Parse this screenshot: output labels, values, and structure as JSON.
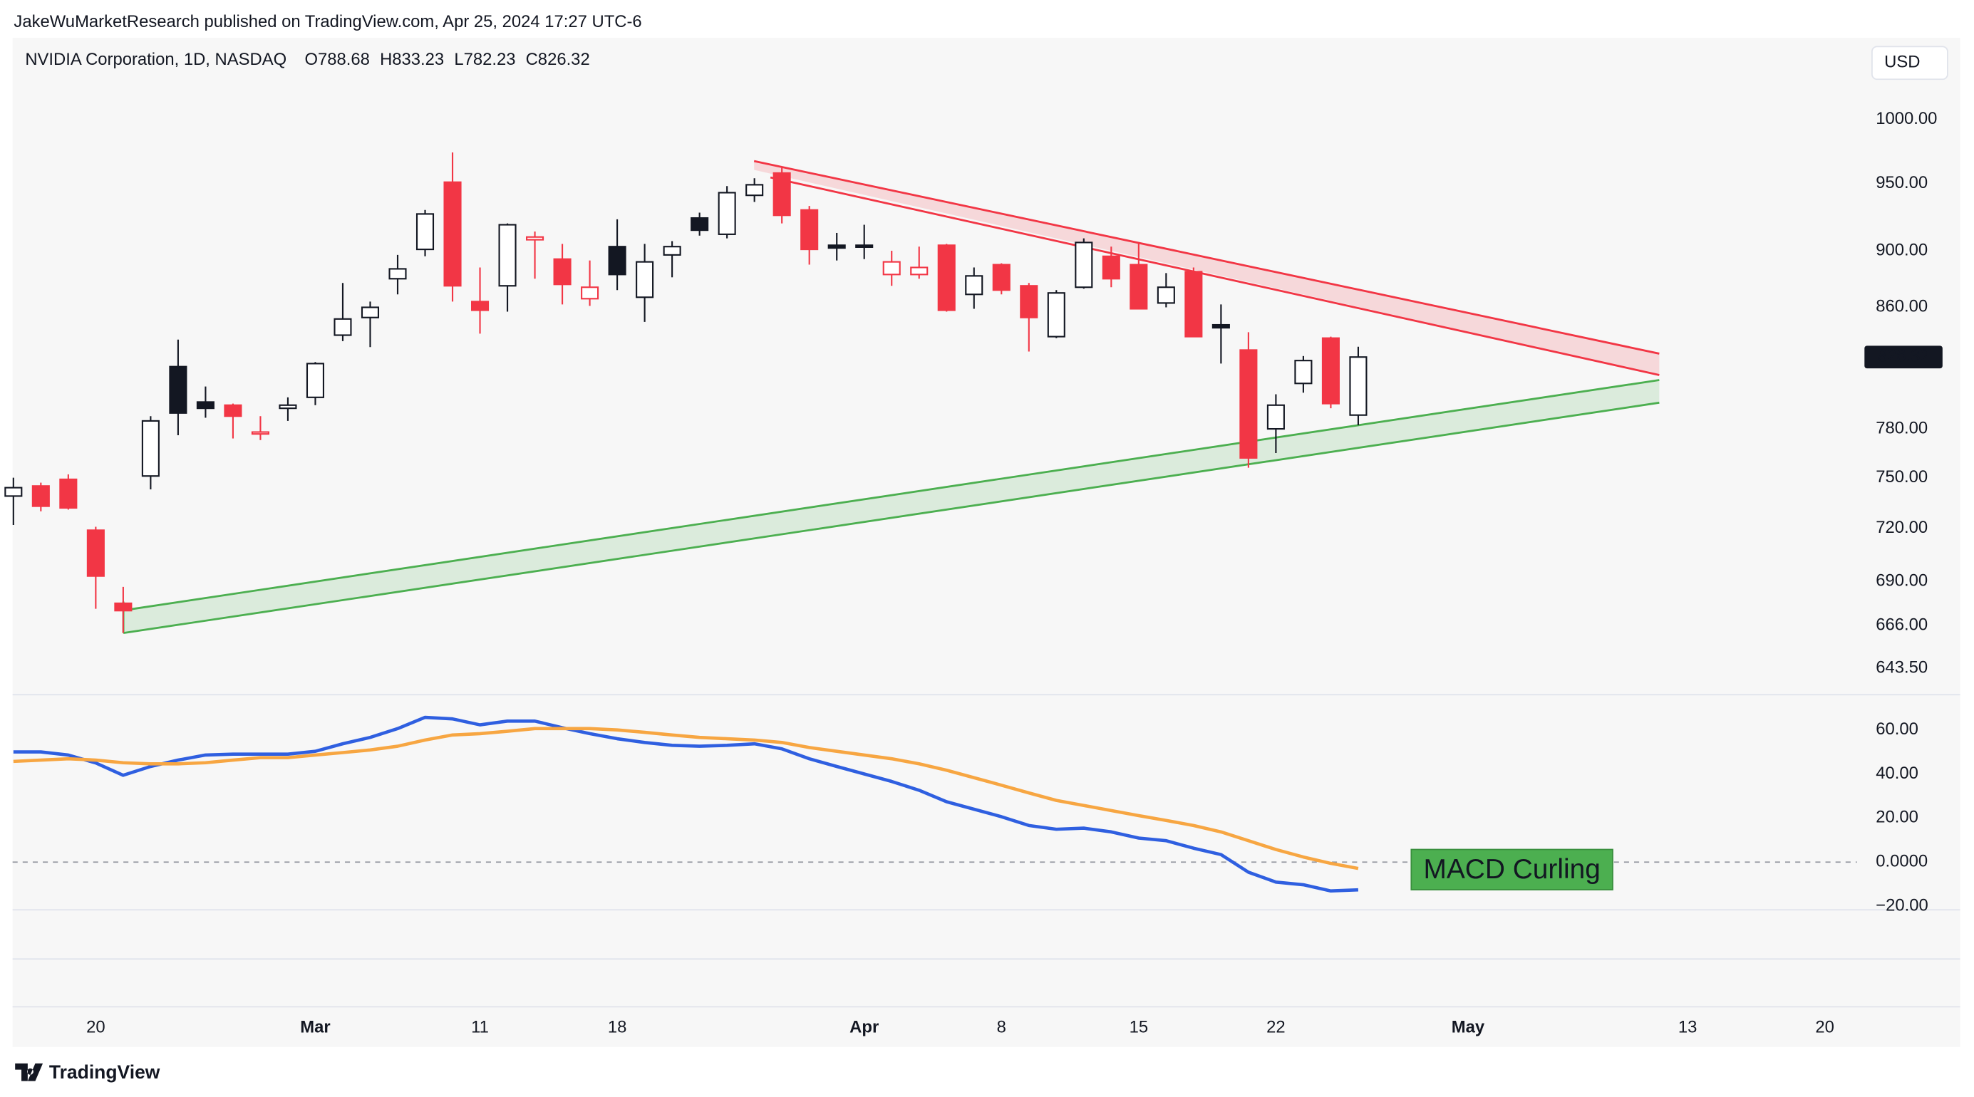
{
  "chart_data": {
    "type": "candlestick",
    "published": "JakeWuMarketResearch published on TradingView.com, Apr 25, 2024 17:27 UTC-6",
    "title": "NVIDIA Corporation, 1D, NASDAQ",
    "ohlc_labels": [
      "O",
      "H",
      "L",
      "C"
    ],
    "currency": "USD",
    "brand": "TradingView",
    "annotation": "MACD Curling",
    "x": [
      -3,
      -2,
      -1,
      0,
      1,
      2,
      3,
      4,
      5,
      6,
      7,
      8,
      9,
      10,
      11,
      12,
      13,
      14,
      15,
      16,
      17,
      18,
      19,
      20,
      21,
      22,
      23,
      24,
      25,
      26,
      27,
      28,
      29,
      30,
      31,
      32,
      33,
      34,
      35,
      36,
      37,
      38,
      39,
      40,
      41,
      42,
      43,
      44,
      45,
      46
    ],
    "open": [
      739,
      745,
      749,
      719,
      678,
      751,
      820,
      797,
      795,
      777,
      793,
      800,
      841,
      853,
      880,
      901,
      951,
      864,
      875,
      908,
      894,
      866,
      903,
      867,
      897,
      924,
      912,
      941,
      958,
      930,
      904,
      904,
      883,
      883,
      904,
      869,
      890,
      875,
      840,
      874,
      896,
      890,
      863,
      885,
      848,
      831,
      780,
      809,
      839,
      788.68
    ],
    "high": [
      750,
      747,
      752,
      721,
      687,
      788,
      838,
      807,
      796,
      788,
      800,
      823,
      877,
      864,
      897,
      930,
      974,
      888,
      920,
      914,
      905,
      893,
      923,
      905,
      907,
      928,
      948,
      954,
      962,
      933,
      913,
      919,
      900,
      903,
      905,
      888,
      891,
      877,
      872,
      909,
      903,
      906,
      884,
      888,
      862,
      843,
      802,
      827,
      840,
      833.23
    ],
    "low": [
      722,
      730,
      731,
      675,
      662,
      743,
      776,
      787,
      774,
      773,
      785,
      795,
      837,
      833,
      869,
      896,
      864,
      842,
      857,
      880,
      862,
      861,
      872,
      850,
      881,
      911,
      909,
      936,
      920,
      890,
      893,
      894,
      875,
      880,
      857,
      859,
      869,
      830,
      839,
      873,
      874,
      859,
      860,
      840,
      822,
      756,
      765,
      803,
      793,
      782.23
    ],
    "close": [
      744,
      733,
      732,
      693,
      674,
      785,
      790,
      793,
      788,
      778,
      795,
      822,
      852,
      860,
      887,
      927,
      875,
      858,
      919,
      910,
      876,
      874,
      883,
      892,
      903,
      915,
      943,
      949,
      926,
      901,
      902,
      903,
      892,
      888,
      858,
      882,
      872,
      853,
      870,
      906,
      880,
      859,
      874,
      840,
      846,
      762,
      795,
      824,
      796,
      826.32
    ],
    "up_color": "#131722",
    "down_color": "#f23645",
    "xlim": [
      -3.03,
      64.17
    ],
    "xticks": [
      {
        "value": 0,
        "label": "20"
      },
      {
        "value": 8,
        "label": "Mar"
      },
      {
        "value": 14,
        "label": "11"
      },
      {
        "value": 19,
        "label": "18"
      },
      {
        "value": 28,
        "label": "Apr"
      },
      {
        "value": 33,
        "label": "8"
      },
      {
        "value": 38,
        "label": "15"
      },
      {
        "value": 43,
        "label": "22"
      },
      {
        "value": 50,
        "label": "May"
      },
      {
        "value": 58,
        "label": "13"
      },
      {
        "value": 63,
        "label": "20"
      }
    ],
    "ylim": [
      630,
      1068
    ],
    "ylog": true,
    "yticks": [
      {
        "value": 1000,
        "label": "1000.00"
      },
      {
        "value": 950,
        "label": "950.00"
      },
      {
        "value": 900,
        "label": "900.00"
      },
      {
        "value": 860,
        "label": "860.00"
      },
      {
        "value": 780,
        "label": "780.00"
      },
      {
        "value": 750,
        "label": "750.00"
      },
      {
        "value": 720,
        "label": "720.00"
      },
      {
        "value": 690,
        "label": "690.00"
      },
      {
        "value": 666,
        "label": "666.00"
      },
      {
        "value": 643.5,
        "label": "643.50"
      }
    ],
    "y2lim": [
      -21.7,
      76
    ],
    "y2ticks": [
      {
        "value": 60,
        "label": "60.00"
      },
      {
        "value": 40,
        "label": "40.00"
      },
      {
        "value": 20,
        "label": "20.00"
      },
      {
        "value": 0,
        "label": "0.0000"
      },
      {
        "value": -20,
        "label": "−20.00"
      }
    ],
    "series": [
      {
        "color": "#2f5fe0",
        "axis": "y2",
        "values": [
          50,
          50,
          48.6,
          45,
          39.4,
          43.4,
          46.3,
          48.6,
          49,
          49,
          49,
          50.3,
          53.7,
          56.6,
          60.6,
          65.7,
          65,
          62.3,
          64,
          64,
          61,
          58.3,
          56,
          54.3,
          53,
          52.6,
          53,
          53.7,
          51.4,
          46.9,
          43.4,
          40,
          36.6,
          32.6,
          27.4,
          24,
          20.6,
          16.6,
          14.9,
          15.4,
          13.7,
          10.9,
          9.7,
          6.3,
          3.4,
          -4.6,
          -9.1,
          -10.3,
          -13.1,
          -12.6
        ]
      },
      {
        "color": "#f7a642",
        "axis": "y2",
        "values": [
          45.7,
          46.3,
          46.9,
          46.3,
          45.1,
          44.6,
          44.6,
          45.1,
          46.3,
          47.4,
          47.4,
          48.6,
          49.7,
          50.9,
          52.6,
          55.4,
          57.7,
          58.3,
          59.4,
          60.6,
          60.6,
          60.6,
          60,
          58.9,
          57.7,
          56.6,
          56,
          55.4,
          54.3,
          52,
          50.3,
          48.6,
          46.9,
          44.6,
          41.7,
          38.3,
          34.9,
          31.4,
          28,
          25.7,
          23.4,
          21.1,
          18.9,
          16.6,
          13.7,
          9.7,
          5.7,
          2.3,
          -0.6,
          -2.9
        ]
      }
    ]
  }
}
